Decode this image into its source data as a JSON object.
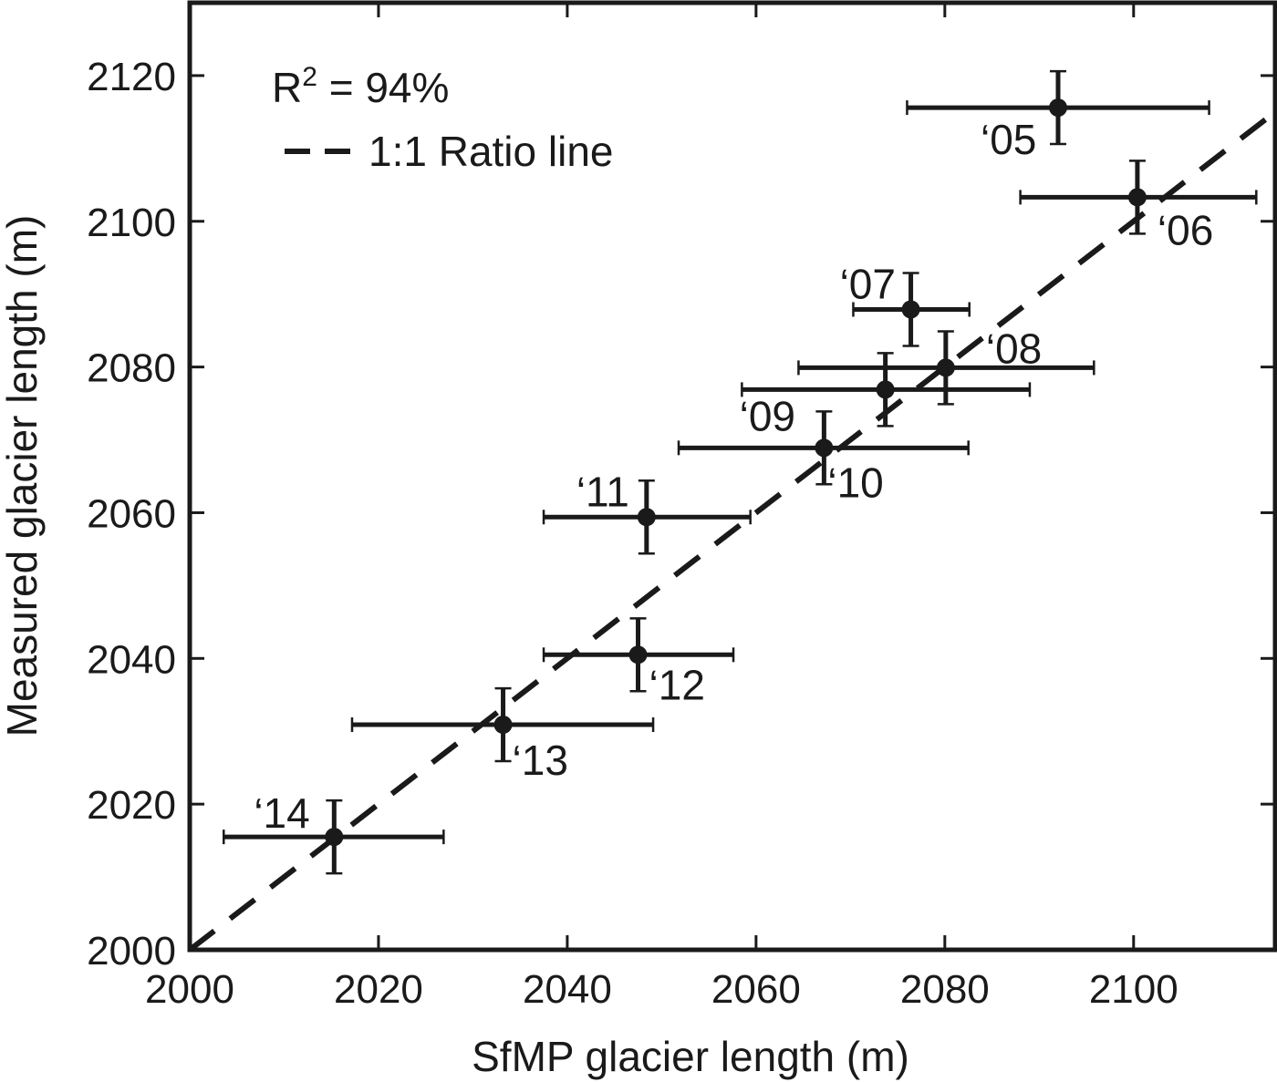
{
  "chart_data": {
    "type": "scatter",
    "title": "",
    "xlabel": "SfMP glacier length (m)",
    "ylabel": "Measured glacier length (m)",
    "xlim": [
      2000,
      2115
    ],
    "ylim": [
      2000,
      2130
    ],
    "xticks": [
      2000,
      2020,
      2040,
      2060,
      2080,
      2100
    ],
    "yticks": [
      2000,
      2020,
      2040,
      2060,
      2080,
      2100,
      2120
    ],
    "grid": false,
    "annotation": {
      "r2_prefix": "R",
      "r2_sup": "2",
      "r2_suffix": " = 94%"
    },
    "legend": {
      "position": "top-left",
      "entries": [
        {
          "label": "1:1 Ratio line",
          "style": "dashed"
        }
      ]
    },
    "ratio_line": {
      "x": [
        2000,
        2115
      ],
      "y": [
        2000,
        2115
      ]
    },
    "points": [
      {
        "label": "‘05",
        "x": 2092.0,
        "y": 2115.6,
        "xmin": 2076.0,
        "xmax": 2108.0,
        "ymin": 2110.6,
        "ymax": 2120.6
      },
      {
        "label": "‘06",
        "x": 2100.4,
        "y": 2103.3,
        "xmin": 2088.0,
        "xmax": 2113.0,
        "ymin": 2098.3,
        "ymax": 2108.3
      },
      {
        "label": "‘07",
        "x": 2076.4,
        "y": 2087.9,
        "xmin": 2070.3,
        "xmax": 2082.6,
        "ymin": 2082.9,
        "ymax": 2092.9
      },
      {
        "label": "‘08",
        "x": 2080.1,
        "y": 2079.9,
        "xmin": 2064.5,
        "xmax": 2095.8,
        "ymin": 2074.9,
        "ymax": 2084.9
      },
      {
        "label": "‘09",
        "x": 2073.7,
        "y": 2076.9,
        "xmin": 2058.5,
        "xmax": 2089.0,
        "ymin": 2071.9,
        "ymax": 2081.9
      },
      {
        "label": "‘10",
        "x": 2067.2,
        "y": 2068.9,
        "xmin": 2051.8,
        "xmax": 2082.5,
        "ymin": 2063.9,
        "ymax": 2073.9
      },
      {
        "label": "‘11",
        "x": 2048.4,
        "y": 2059.4,
        "xmin": 2037.5,
        "xmax": 2059.4,
        "ymin": 2054.4,
        "ymax": 2064.4
      },
      {
        "label": "‘12",
        "x": 2047.5,
        "y": 2040.5,
        "xmin": 2037.5,
        "xmax": 2057.6,
        "ymin": 2035.5,
        "ymax": 2045.5
      },
      {
        "label": "‘13",
        "x": 2033.2,
        "y": 2030.9,
        "xmin": 2017.2,
        "xmax": 2049.1,
        "ymin": 2025.9,
        "ymax": 2035.9
      },
      {
        "label": "‘14",
        "x": 2015.3,
        "y": 2015.5,
        "xmin": 2003.6,
        "xmax": 2026.9,
        "ymin": 2010.5,
        "ymax": 2020.5
      }
    ],
    "colors": {
      "marks": "#1a1a1a"
    }
  }
}
